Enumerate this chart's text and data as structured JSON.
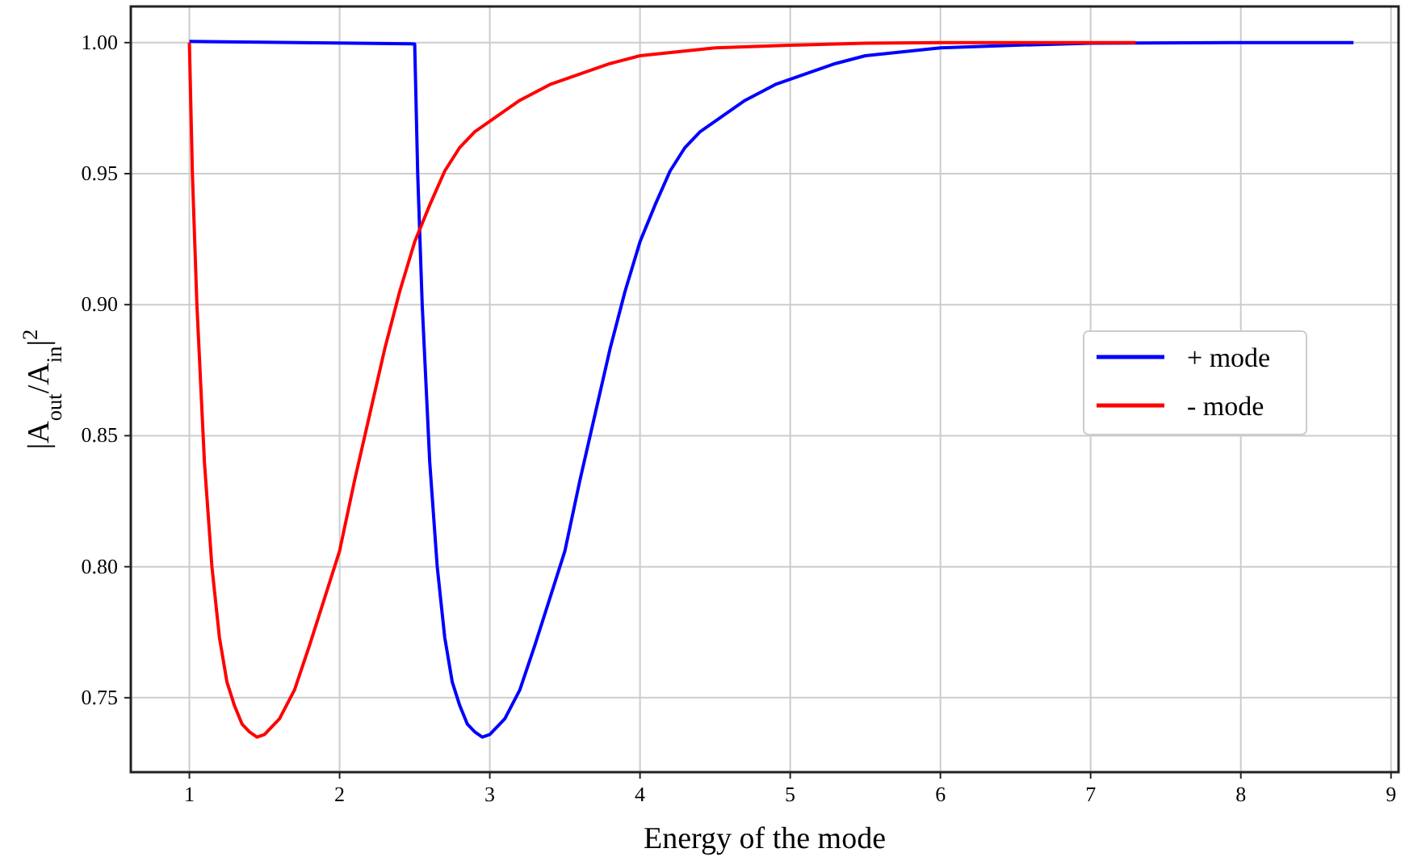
{
  "chart_data": {
    "type": "line",
    "xlabel": "Energy of the mode",
    "ylabel": "|A$_{out}$/A$_{in}$|$^{2}$",
    "xlim": [
      0.61,
      9.05
    ],
    "ylim": [
      0.7216,
      1.0138
    ],
    "xticks": [
      1,
      2,
      3,
      4,
      5,
      6,
      7,
      8,
      9
    ],
    "yticks": [
      {
        "value": 0.75,
        "label": "0.75"
      },
      {
        "value": 0.8,
        "label": "0.80"
      },
      {
        "value": 0.85,
        "label": "0.85"
      },
      {
        "value": 0.9,
        "label": "0.90"
      },
      {
        "value": 0.95,
        "label": "0.95"
      },
      {
        "value": 1.0,
        "label": "1.00"
      }
    ],
    "grid": true,
    "legend": "right",
    "line_style": "solid",
    "series": [
      {
        "name": "+ mode",
        "color": "#0000ff",
        "x": [
          1,
          2.5,
          2.52,
          2.55,
          2.6,
          2.65,
          2.7,
          2.75,
          2.8,
          2.85,
          2.9,
          2.95,
          3.0,
          3.1,
          3.2,
          3.3,
          3.4,
          3.5,
          3.6,
          3.7,
          3.8,
          3.9,
          4.0,
          4.1,
          4.2,
          4.3,
          4.4,
          4.5,
          4.7,
          4.9,
          5.1,
          5.3,
          5.5,
          6.0,
          6.5,
          7.0,
          8.0,
          8.75
        ],
        "values": [
          1.0005,
          0.9995,
          0.95,
          0.9,
          0.84,
          0.8,
          0.773,
          0.756,
          0.747,
          0.74,
          0.737,
          0.735,
          0.736,
          0.742,
          0.753,
          0.77,
          0.788,
          0.806,
          0.833,
          0.858,
          0.883,
          0.905,
          0.924,
          0.938,
          0.951,
          0.96,
          0.966,
          0.97,
          0.978,
          0.984,
          0.988,
          0.992,
          0.995,
          0.998,
          0.999,
          0.9998,
          1.0,
          1.0
        ]
      },
      {
        "name": "- mode",
        "color": "#ff0000",
        "x": [
          1,
          1.02,
          1.05,
          1.1,
          1.15,
          1.2,
          1.25,
          1.3,
          1.35,
          1.4,
          1.45,
          1.5,
          1.6,
          1.7,
          1.8,
          1.9,
          2.0,
          2.1,
          2.2,
          2.3,
          2.4,
          2.5,
          2.6,
          2.7,
          2.8,
          2.9,
          3.0,
          3.2,
          3.4,
          3.6,
          3.8,
          4.0,
          4.5,
          5.0,
          5.5,
          6.0,
          7.3
        ],
        "values": [
          1.0,
          0.95,
          0.9,
          0.84,
          0.8,
          0.773,
          0.756,
          0.747,
          0.74,
          0.737,
          0.735,
          0.736,
          0.742,
          0.753,
          0.77,
          0.788,
          0.806,
          0.833,
          0.858,
          0.883,
          0.905,
          0.924,
          0.938,
          0.951,
          0.96,
          0.966,
          0.97,
          0.978,
          0.984,
          0.988,
          0.992,
          0.995,
          0.998,
          0.999,
          0.9998,
          1.0,
          1.0
        ]
      }
    ]
  }
}
